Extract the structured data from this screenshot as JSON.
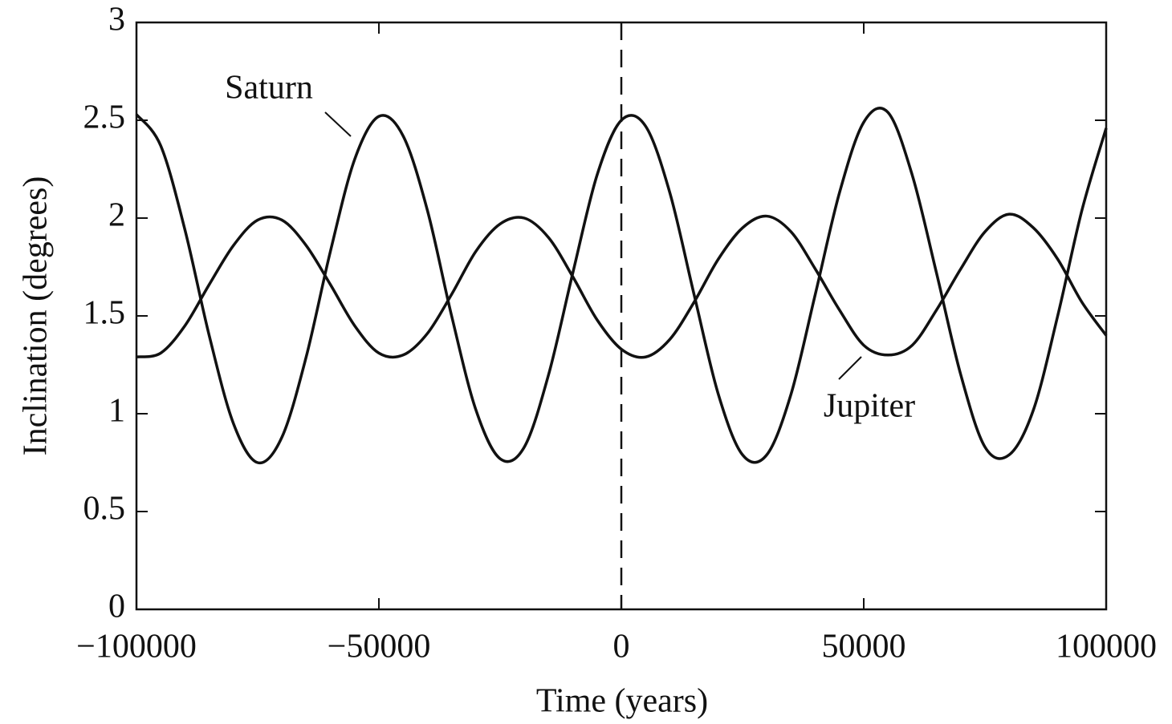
{
  "chart_data": {
    "type": "line",
    "x_label": "Time (years)",
    "y_label": "Inclination (degrees)",
    "x": [
      -100000,
      -95000,
      -90000,
      -85000,
      -80000,
      -75000,
      -70000,
      -65000,
      -60000,
      -55000,
      -50000,
      -45000,
      -40000,
      -35000,
      -30000,
      -25000,
      -20000,
      -15000,
      -10000,
      -5000,
      0,
      5000,
      10000,
      15000,
      20000,
      25000,
      30000,
      35000,
      40000,
      45000,
      50000,
      55000,
      60000,
      65000,
      70000,
      75000,
      80000,
      85000,
      90000,
      95000,
      100000
    ],
    "series": [
      {
        "name": "Saturn",
        "color": "#111111",
        "values": [
          2.53,
          2.37,
          1.94,
          1.4,
          0.95,
          0.75,
          0.88,
          1.29,
          1.83,
          2.3,
          2.52,
          2.42,
          2.04,
          1.5,
          1.02,
          0.77,
          0.83,
          1.2,
          1.72,
          2.22,
          2.5,
          2.47,
          2.13,
          1.61,
          1.1,
          0.79,
          0.79,
          1.1,
          1.61,
          2.13,
          2.49,
          2.54,
          2.22,
          1.72,
          1.2,
          0.83,
          0.79,
          1.02,
          1.5,
          2.04,
          2.46
        ]
      },
      {
        "name": "Jupiter",
        "color": "#111111",
        "values": [
          1.29,
          1.31,
          1.45,
          1.66,
          1.86,
          1.99,
          1.99,
          1.86,
          1.66,
          1.45,
          1.31,
          1.3,
          1.41,
          1.61,
          1.83,
          1.97,
          2.0,
          1.9,
          1.7,
          1.48,
          1.33,
          1.29,
          1.38,
          1.57,
          1.79,
          1.95,
          2.01,
          1.93,
          1.74,
          1.53,
          1.35,
          1.3,
          1.35,
          1.53,
          1.74,
          1.93,
          2.02,
          1.95,
          1.79,
          1.57,
          1.4
        ]
      }
    ],
    "vline": 0,
    "xlim": [
      -100000,
      100000
    ],
    "xticks": [
      {
        "value": -100000,
        "label": "−100000"
      },
      {
        "value": -50000,
        "label": "−50000"
      },
      0,
      50000,
      100000
    ],
    "ylim": [
      0,
      3
    ],
    "yticks": [
      0,
      0.5,
      1,
      1.5,
      2,
      2.5,
      3
    ],
    "grid": false
  }
}
